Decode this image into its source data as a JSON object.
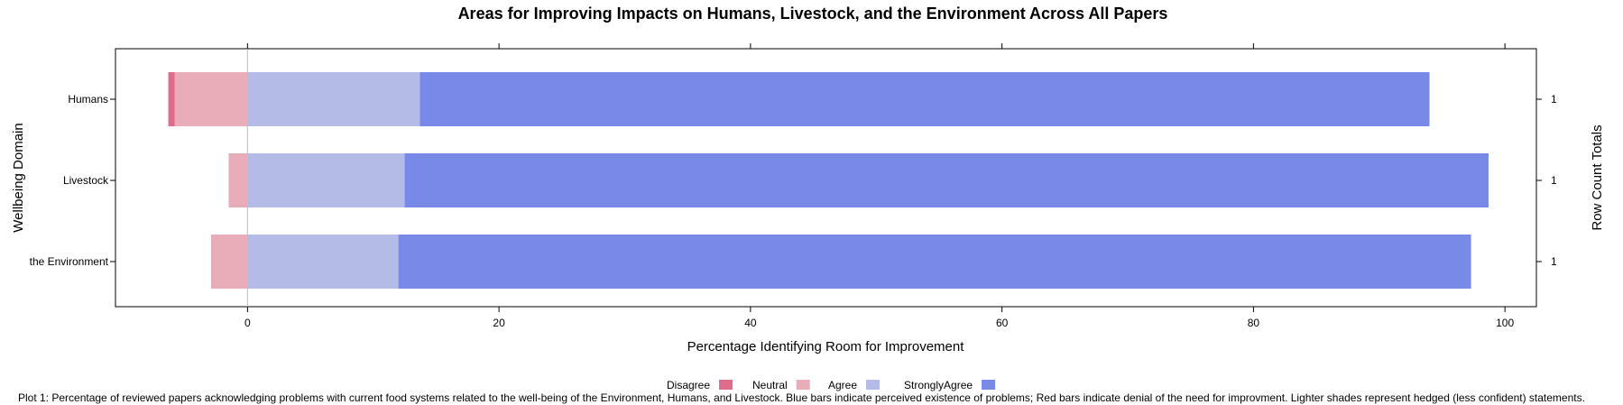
{
  "chart_data": {
    "type": "bar",
    "orientation": "horizontal",
    "stacked": "diverging",
    "title": "Areas for Improving Impacts on Humans, Livestock, and the Environment Across All Papers",
    "xlabel": "Percentage Identifying Room for Improvement",
    "ylabel": "Wellbeing Domain",
    "ylabel_right": "Row Count Totals",
    "xlim": [
      -10.5,
      102.5
    ],
    "xticks": [
      0,
      20,
      40,
      60,
      80,
      100
    ],
    "grid": false,
    "legend_position": "bottom",
    "categories": [
      "Humans",
      "Livestock",
      "the Environment"
    ],
    "row_totals": [
      "1",
      "1",
      "1"
    ],
    "series": [
      {
        "name": "Disagree",
        "color": "#e06c8c",
        "values": [
          -0.5,
          0,
          0
        ]
      },
      {
        "name": "Neutral",
        "color": "#e8adb8",
        "values": [
          -5.8,
          -1.5,
          -2.9
        ]
      },
      {
        "name": "Agree",
        "color": "#b3bbe6",
        "values": [
          13.7,
          12.5,
          12.0
        ]
      },
      {
        "name": "StronglyAgree",
        "color": "#7889e8",
        "values": [
          80.3,
          86.2,
          85.3
        ]
      }
    ]
  },
  "caption": "Plot 1: Percentage of reviewed papers acknowledging problems with current food systems related to the well-being of the Environment, Humans, and Livestock. Blue bars indicate perceived existence of problems; Red bars indicate denial of the need for improvment. Lighter shades represent hedged (less confident) statements."
}
